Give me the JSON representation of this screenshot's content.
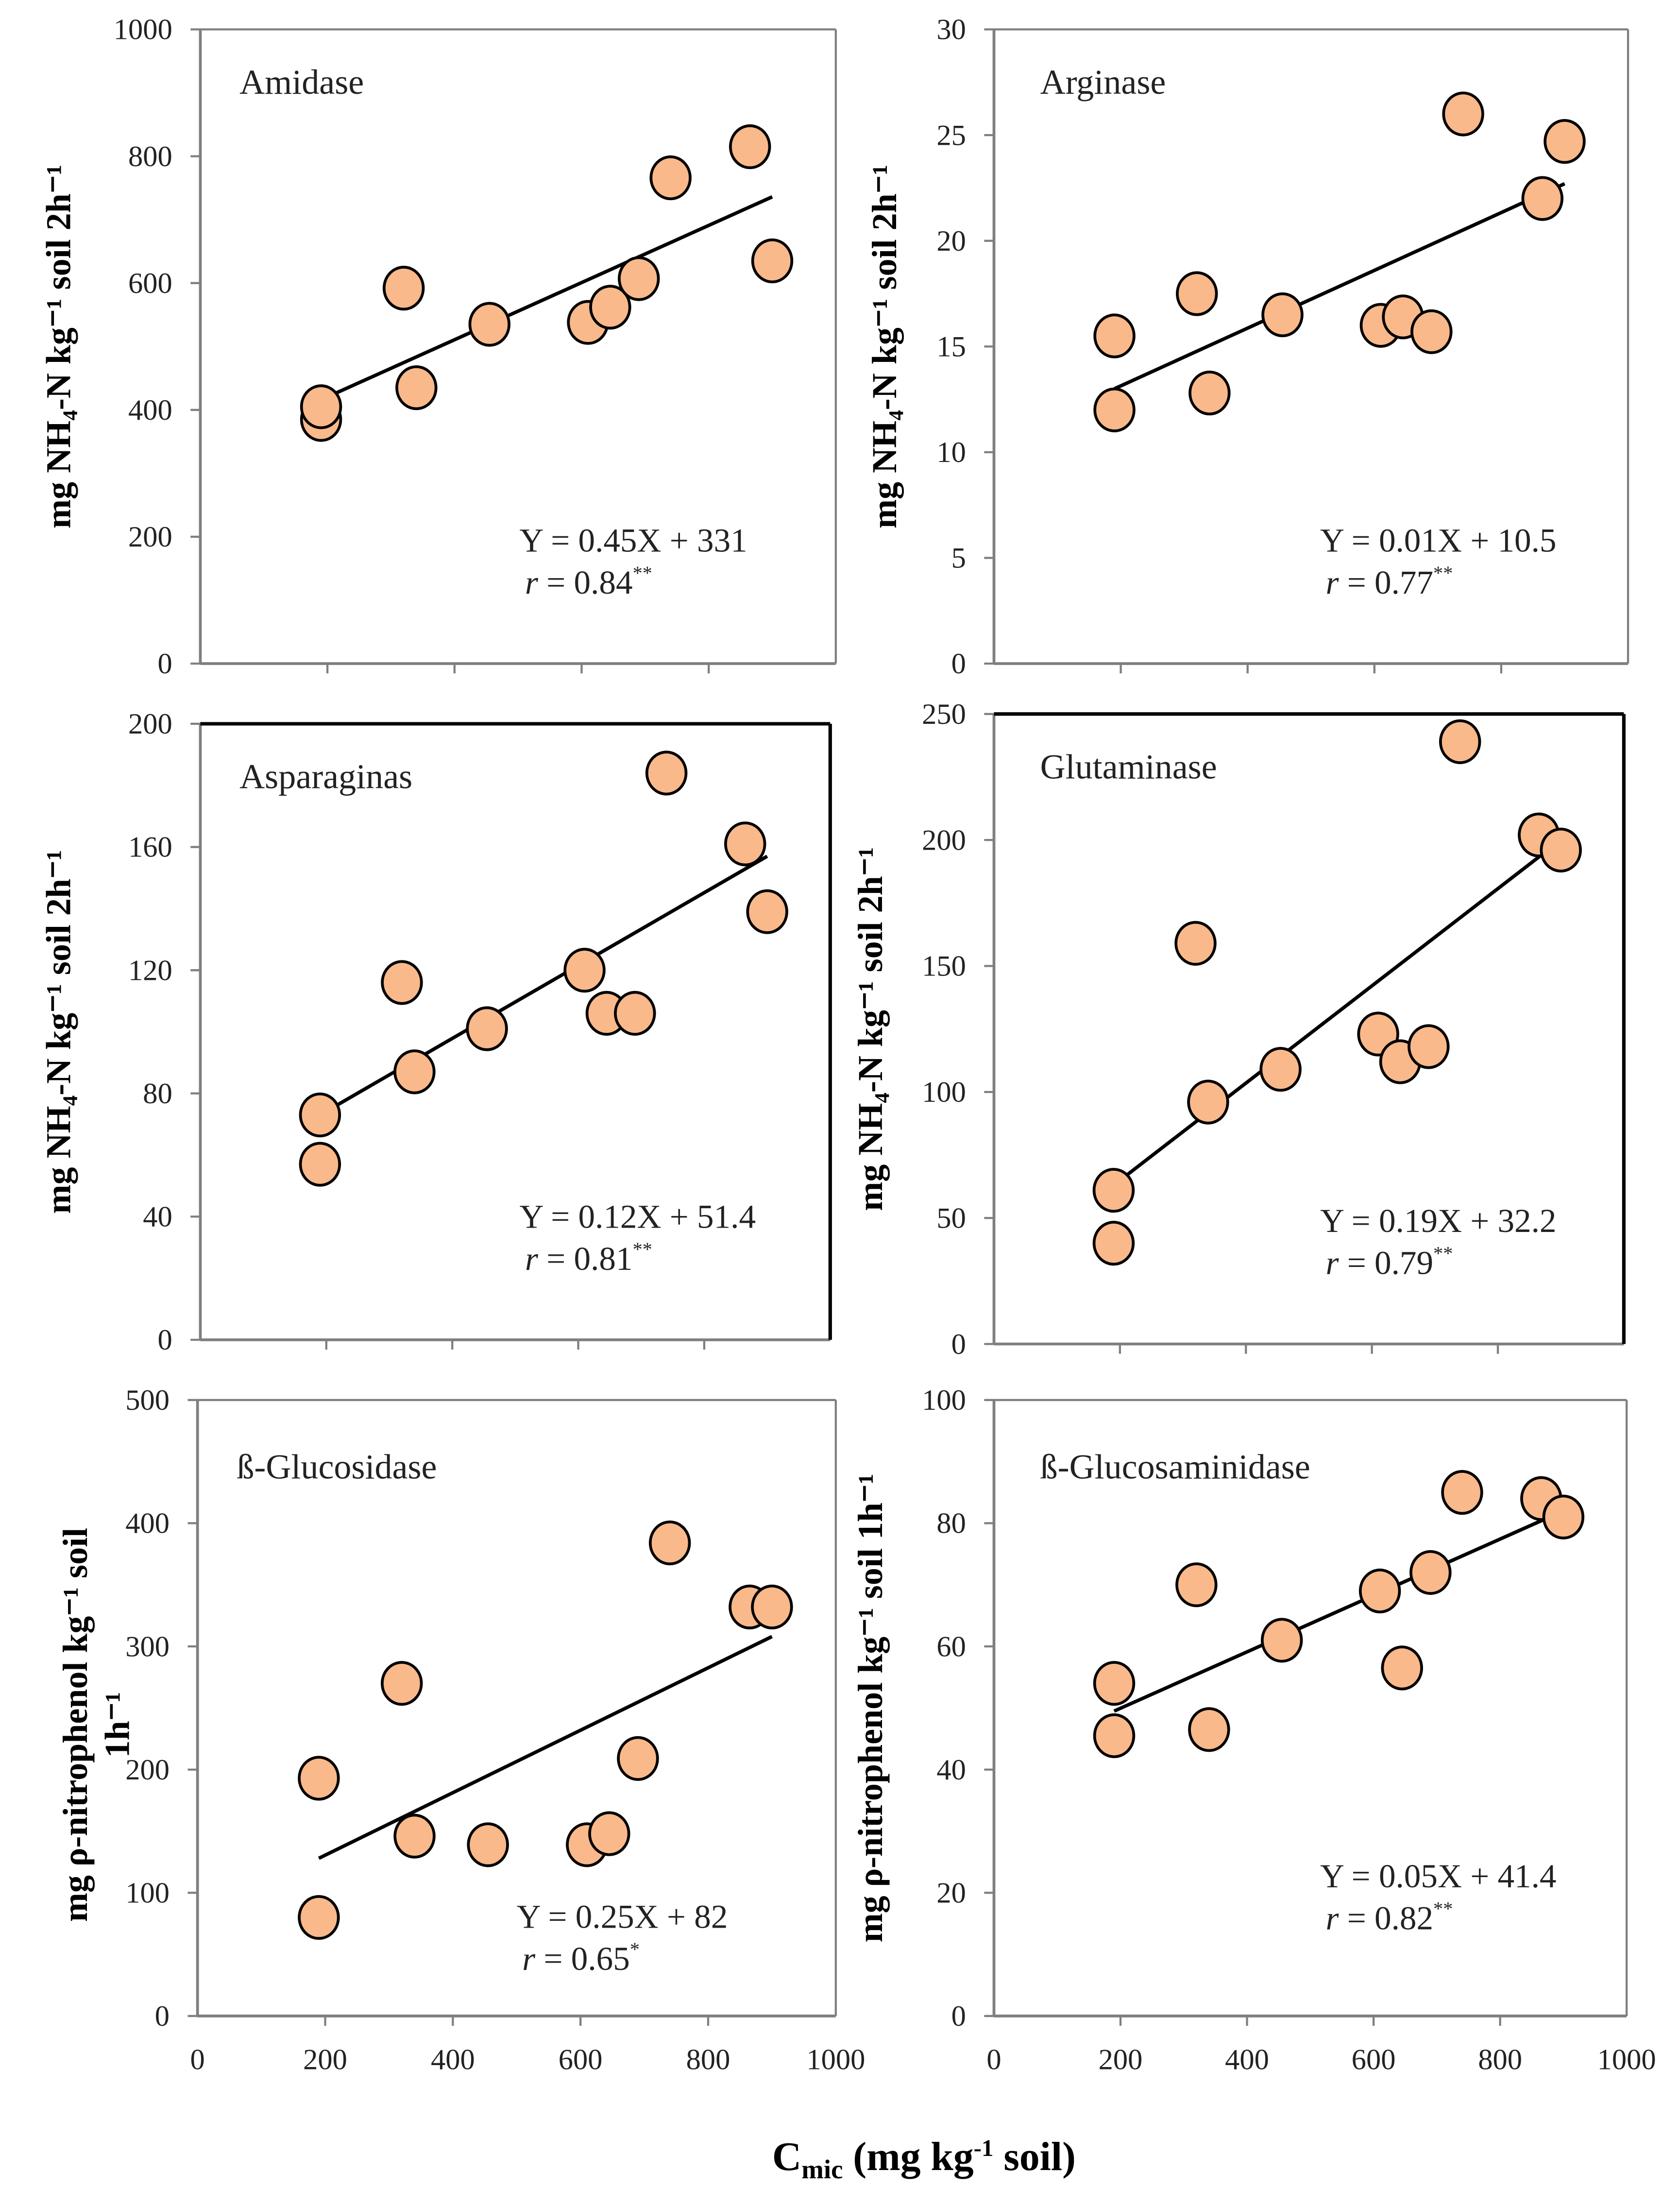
{
  "chart_data": [
    {
      "type": "scatter",
      "title": "Amidase",
      "ylabel": "mg NH4-N kg-1 soil 2h-1",
      "ylim": [
        0,
        1000
      ],
      "yticks": [
        0,
        200,
        400,
        600,
        800,
        1000
      ],
      "xlim": [
        0,
        1000
      ],
      "x": [
        190,
        190,
        320,
        340,
        455,
        610,
        645,
        690,
        740,
        865,
        900
      ],
      "y": [
        385,
        405,
        592,
        435,
        535,
        538,
        562,
        607,
        766,
        815,
        635
      ],
      "fit": {
        "x": [
          190,
          900
        ],
        "y": [
          416,
          736
        ]
      },
      "equation": "Y = 0.45X + 331",
      "r_label": "r",
      "r_value": " = 0.84",
      "significance": "**"
    },
    {
      "type": "scatter",
      "title": "Arginase",
      "ylabel": "mg NH4-N kg-1 soil 2h-1",
      "ylim": [
        0,
        30
      ],
      "yticks": [
        0,
        5,
        10,
        15,
        20,
        25,
        30
      ],
      "xlim": [
        0,
        1000
      ],
      "x": [
        190,
        190,
        320,
        340,
        455,
        610,
        645,
        690,
        740,
        865,
        900
      ],
      "y": [
        12,
        15.5,
        17.5,
        12.8,
        16.5,
        16,
        16.4,
        15.7,
        26,
        22,
        24.7
      ],
      "fit": {
        "x": [
          190,
          900
        ],
        "y": [
          13,
          22.7
        ]
      },
      "equation": "Y = 0.01X + 10.5",
      "r_label": "r",
      "r_value": " = 0.77",
      "significance": "**"
    },
    {
      "type": "scatter",
      "title": "Asparaginas",
      "ylabel": "mg NH4-N kg-1 soil 2h-1",
      "ylim": [
        0,
        200
      ],
      "yticks": [
        0,
        40,
        80,
        120,
        160,
        200
      ],
      "xlim": [
        0,
        1000
      ],
      "x": [
        190,
        190,
        320,
        340,
        455,
        610,
        645,
        690,
        740,
        865,
        900
      ],
      "y": [
        57,
        73,
        116,
        87,
        101,
        120,
        106,
        106,
        184,
        161,
        139
      ],
      "fit": {
        "x": [
          190,
          900
        ],
        "y": [
          73,
          157
        ]
      },
      "equation": "Y = 0.12X + 51.4",
      "r_label": "r",
      "r_value": " = 0.81",
      "significance": "**"
    },
    {
      "type": "scatter",
      "title": "Glutaminase",
      "ylabel": "mg NH4-N kg-1 soil 2h-1",
      "ylim": [
        0,
        250
      ],
      "yticks": [
        0,
        50,
        100,
        150,
        200,
        250
      ],
      "xlim": [
        0,
        1000
      ],
      "x": [
        190,
        190,
        320,
        340,
        455,
        610,
        645,
        690,
        740,
        865,
        900
      ],
      "y": [
        40,
        61,
        159,
        96,
        109,
        123,
        112,
        118,
        239,
        202,
        196
      ],
      "fit": {
        "x": [
          190,
          900
        ],
        "y": [
          63,
          200
        ]
      },
      "equation": "Y = 0.19X + 32.2",
      "r_label": "r",
      "r_value": " = 0.79",
      "significance": "**"
    },
    {
      "type": "scatter",
      "title": "ß-Glucosidase",
      "ylabel": "mg ρ-nitrophenol kg-1 soil 1h-1",
      "ylim": [
        0,
        500
      ],
      "yticks": [
        0,
        100,
        200,
        300,
        400,
        500
      ],
      "xlim": [
        0,
        1000
      ],
      "xticks": [
        0,
        200,
        400,
        600,
        800,
        1000
      ],
      "x": [
        190,
        190,
        320,
        340,
        455,
        610,
        645,
        690,
        740,
        865,
        900
      ],
      "y": [
        193,
        80,
        270,
        146,
        139,
        139,
        148,
        209,
        384,
        332,
        332
      ],
      "fit": {
        "x": [
          190,
          900
        ],
        "y": [
          128,
          308
        ]
      },
      "equation": "Y = 0.25X + 82",
      "r_label": "r",
      "r_value": " = 0.65",
      "significance": "*"
    },
    {
      "type": "scatter",
      "title": "ß-Glucosaminidase",
      "ylabel": "mg ρ-nitrophenol kg-1 soil 1h-1",
      "ylim": [
        0,
        100
      ],
      "yticks": [
        0,
        20,
        40,
        60,
        80,
        100
      ],
      "xlim": [
        0,
        1000
      ],
      "xticks": [
        0,
        200,
        400,
        600,
        800,
        1000
      ],
      "x": [
        190,
        190,
        320,
        340,
        455,
        610,
        645,
        690,
        740,
        865,
        900
      ],
      "y": [
        54,
        45.5,
        70,
        46.5,
        61,
        69,
        56.5,
        72,
        85,
        84,
        81
      ],
      "fit": {
        "x": [
          190,
          900
        ],
        "y": [
          49.5,
          82
        ]
      },
      "equation": "Y = 0.05X + 41.4",
      "r_label": "r",
      "r_value": " = 0.82",
      "significance": "**"
    }
  ],
  "xlabel": {
    "main": "C",
    "sub": "mic",
    "rest": " (mg kg",
    "sup": "-1",
    "end": " soil)"
  },
  "colors": {
    "marker": "#f9b98a",
    "edge": "#000000",
    "axis": "#7f7f7f"
  }
}
